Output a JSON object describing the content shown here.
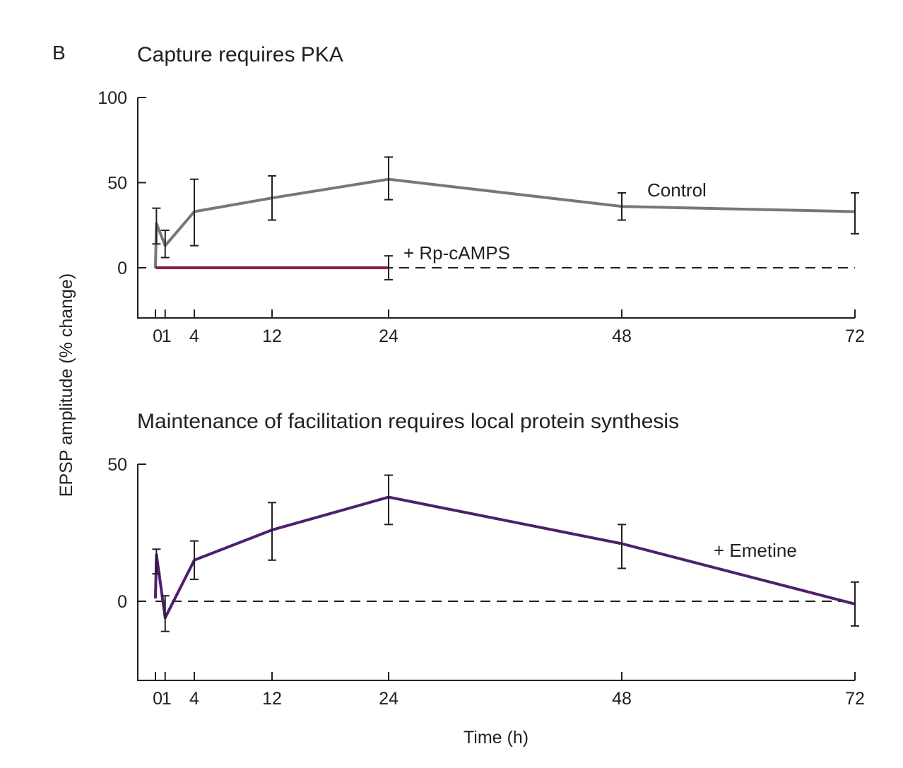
{
  "figure": {
    "panel_letter": "B",
    "shared_ylabel": "EPSP amplitude (% change)",
    "shared_xlabel": "Time (h)"
  },
  "chart_data": [
    {
      "type": "line",
      "title": "Capture requires PKA",
      "xlabel": "Time (h)",
      "ylabel": "EPSP amplitude (% change)",
      "x_ticks": [
        0,
        1,
        4,
        12,
        24,
        48,
        72
      ],
      "x_tick_labels": [
        "0",
        "1",
        "4",
        "12",
        "24",
        "48",
        "72"
      ],
      "y_ticks": [
        0,
        50,
        100
      ],
      "y_tick_labels": [
        "0",
        "50",
        "100"
      ],
      "xlim": [
        -2,
        72
      ],
      "ylim": [
        -30,
        100
      ],
      "baseline": 0,
      "series": [
        {
          "name": "Control",
          "color": "#77777a",
          "x": [
            0,
            0.1,
            1,
            4,
            12,
            24,
            48,
            72
          ],
          "y": [
            0,
            26,
            13,
            33,
            41,
            52,
            36,
            33
          ],
          "error_x": [
            0.1,
            1,
            4,
            12,
            24,
            48,
            72
          ],
          "error_low": [
            14,
            6,
            13,
            28,
            40,
            28,
            20
          ],
          "error_high": [
            35,
            22,
            52,
            54,
            65,
            44,
            44
          ]
        },
        {
          "name": "+ Rp-cAMPS",
          "color": "#8b1e4e",
          "x": [
            0,
            24
          ],
          "y": [
            0,
            0
          ],
          "error_x": [
            24
          ],
          "error_low": [
            -7
          ],
          "error_high": [
            7
          ]
        }
      ]
    },
    {
      "type": "line",
      "title": "Maintenance of facilitation requires local protein synthesis",
      "xlabel": "Time (h)",
      "ylabel": "EPSP amplitude (% change)",
      "x_ticks": [
        0,
        1,
        4,
        12,
        24,
        48,
        72
      ],
      "x_tick_labels": [
        "0",
        "1",
        "4",
        "12",
        "24",
        "48",
        "72"
      ],
      "y_ticks": [
        0,
        50
      ],
      "y_tick_labels": [
        "0",
        "50"
      ],
      "xlim": [
        -2,
        72
      ],
      "ylim": [
        -29,
        50
      ],
      "baseline": 0,
      "series": [
        {
          "name": "+ Emetine",
          "color": "#4f1f6e",
          "x": [
            0,
            0.1,
            1,
            4,
            12,
            24,
            48,
            72
          ],
          "y": [
            1,
            17,
            -6,
            15,
            26,
            38,
            21,
            -1
          ],
          "error_x": [
            0.1,
            1,
            4,
            12,
            24,
            48,
            72
          ],
          "error_low": [
            10,
            -11,
            8,
            15,
            28,
            12,
            -9
          ],
          "error_high": [
            19,
            2,
            22,
            36,
            46,
            28,
            7
          ]
        }
      ]
    }
  ]
}
